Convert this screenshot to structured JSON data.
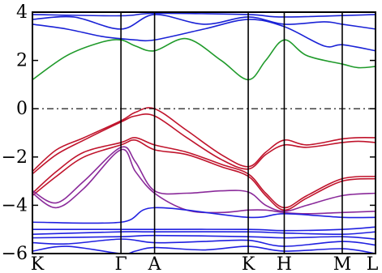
{
  "chart_data": {
    "type": "line",
    "title": "",
    "xlabel": "",
    "ylabel": "",
    "ylim": [
      -6,
      4
    ],
    "yticks": [
      4,
      2,
      0,
      -2,
      -4,
      -6
    ],
    "ytick_labels": [
      "4",
      "2",
      "0",
      "−2",
      "−4",
      "−6"
    ],
    "kpoints": [
      {
        "label": "K",
        "x": 0.0
      },
      {
        "label": "Γ",
        "x": 0.258
      },
      {
        "label": "A",
        "x": 0.356
      },
      {
        "label": "K",
        "x": 0.629
      },
      {
        "label": "H",
        "x": 0.734
      },
      {
        "label": "M",
        "x": 0.903
      },
      {
        "label": "L",
        "x": 1.0
      }
    ],
    "fermi_level": 0,
    "grid": false,
    "colors": {
      "conduction": "#1a22d6",
      "conduction_green": "#1f9a2a",
      "valence_red": "#c0142c",
      "valence_purple": "#8a2a9a",
      "deep_blue": "#2020e0",
      "fermi_line": "#000000"
    },
    "series": [
      {
        "group": "conduction",
        "x": [
          0,
          0.1,
          0.2,
          0.258,
          0.3,
          0.356,
          0.45,
          0.55,
          0.629,
          0.68,
          0.734,
          0.8,
          0.903,
          0.95,
          1.0
        ],
        "y": [
          1.2,
          2.2,
          2.75,
          2.85,
          2.6,
          2.4,
          2.9,
          2.0,
          1.2,
          2.0,
          2.85,
          2.2,
          1.85,
          1.7,
          1.75
        ]
      },
      {
        "group": "conduction",
        "x": [
          0,
          0.1,
          0.2,
          0.258,
          0.3,
          0.356,
          0.5,
          0.629,
          0.734,
          0.85,
          0.903,
          1.0
        ],
        "y": [
          3.5,
          3.3,
          3.0,
          2.9,
          2.85,
          2.85,
          3.3,
          3.7,
          3.4,
          2.6,
          2.65,
          2.4
        ]
      },
      {
        "group": "conduction",
        "x": [
          0,
          0.12,
          0.258,
          0.356,
          0.5,
          0.629,
          0.734,
          0.85,
          0.903,
          1.0
        ],
        "y": [
          3.7,
          3.8,
          3.3,
          3.9,
          3.5,
          3.8,
          3.5,
          3.6,
          3.5,
          3.3
        ]
      },
      {
        "group": "conduction",
        "x": [
          0,
          0.258,
          0.356,
          0.629,
          0.734,
          1.0
        ],
        "y": [
          3.9,
          3.85,
          3.95,
          3.9,
          3.8,
          3.9
        ]
      },
      {
        "group": "valence_top",
        "x": [
          0,
          0.07,
          0.15,
          0.258,
          0.3,
          0.356,
          0.45,
          0.55,
          0.629,
          0.68,
          0.734,
          0.8,
          0.903,
          0.95,
          1.0
        ],
        "y": [
          -2.6,
          -1.7,
          -1.2,
          -0.5,
          -0.15,
          0.0,
          -0.9,
          -1.9,
          -2.4,
          -1.8,
          -1.3,
          -1.5,
          -1.25,
          -1.2,
          -1.2
        ]
      },
      {
        "group": "valence_top",
        "x": [
          0,
          0.07,
          0.15,
          0.258,
          0.3,
          0.356,
          0.45,
          0.55,
          0.629,
          0.68,
          0.734,
          0.8,
          0.903,
          0.95,
          1.0
        ],
        "y": [
          -2.7,
          -1.9,
          -1.3,
          -0.55,
          -0.3,
          -0.3,
          -1.2,
          -2.1,
          -2.5,
          -1.9,
          -1.5,
          -1.6,
          -1.4,
          -1.35,
          -1.4
        ]
      },
      {
        "group": "valence_mid",
        "x": [
          0,
          0.07,
          0.15,
          0.258,
          0.3,
          0.356,
          0.45,
          0.55,
          0.629,
          0.68,
          0.734,
          0.8,
          0.903,
          1.0
        ],
        "y": [
          -3.5,
          -2.6,
          -1.8,
          -1.4,
          -1.2,
          -1.5,
          -1.8,
          -2.3,
          -2.7,
          -3.5,
          -4.1,
          -3.6,
          -2.9,
          -2.8
        ]
      },
      {
        "group": "valence_mid",
        "x": [
          0,
          0.07,
          0.15,
          0.258,
          0.3,
          0.356,
          0.45,
          0.55,
          0.629,
          0.68,
          0.734,
          0.8,
          0.903,
          1.0
        ],
        "y": [
          -3.6,
          -2.8,
          -2.0,
          -1.5,
          -1.3,
          -1.7,
          -1.9,
          -2.4,
          -2.8,
          -3.6,
          -4.2,
          -3.7,
          -3.0,
          -2.9
        ]
      },
      {
        "group": "valence_low",
        "x": [
          0,
          0.07,
          0.15,
          0.258,
          0.3,
          0.356,
          0.45,
          0.55,
          0.629,
          0.68,
          0.734,
          0.8,
          0.903,
          1.0
        ],
        "y": [
          -3.4,
          -3.9,
          -3.0,
          -1.6,
          -2.2,
          -3.4,
          -3.5,
          -3.4,
          -3.45,
          -4.0,
          -4.25,
          -4.0,
          -3.6,
          -3.5
        ]
      },
      {
        "group": "valence_low",
        "x": [
          0,
          0.07,
          0.15,
          0.258,
          0.3,
          0.356,
          0.45,
          0.55,
          0.629,
          0.68,
          0.734,
          0.8,
          0.903,
          1.0
        ],
        "y": [
          -3.5,
          -4.1,
          -3.3,
          -1.7,
          -2.6,
          -3.5,
          -4.2,
          -4.3,
          -4.2,
          -4.2,
          -4.3,
          -4.35,
          -4.3,
          -4.25
        ]
      },
      {
        "group": "deep",
        "x": [
          0,
          0.258,
          0.356,
          0.629,
          0.734,
          0.903,
          1.0
        ],
        "y": [
          -4.7,
          -4.7,
          -4.1,
          -4.5,
          -4.35,
          -4.5,
          -4.5
        ]
      },
      {
        "group": "deep",
        "x": [
          0,
          0.258,
          0.356,
          0.629,
          0.734,
          0.903,
          1.0
        ],
        "y": [
          -5.0,
          -5.0,
          -5.0,
          -5.0,
          -5.05,
          -5.0,
          -4.9
        ]
      },
      {
        "group": "deep",
        "x": [
          0,
          0.258,
          0.356,
          0.629,
          0.734,
          0.903,
          1.0
        ],
        "y": [
          -5.2,
          -5.1,
          -5.1,
          -5.1,
          -5.15,
          -5.2,
          -5.1
        ]
      },
      {
        "group": "deep",
        "x": [
          0,
          0.258,
          0.356,
          0.629,
          0.734,
          0.903,
          1.0
        ],
        "y": [
          -5.35,
          -5.3,
          -5.25,
          -5.3,
          -5.35,
          -5.3,
          -5.4
        ]
      },
      {
        "group": "deep",
        "x": [
          0,
          0.1,
          0.258,
          0.356,
          0.5,
          0.629,
          0.734,
          0.903,
          1.0
        ],
        "y": [
          -5.55,
          -5.6,
          -5.4,
          -5.55,
          -5.5,
          -5.45,
          -5.7,
          -5.5,
          -5.65
        ]
      },
      {
        "group": "deep",
        "x": [
          0,
          0.1,
          0.258,
          0.3,
          0.356,
          0.5,
          0.629,
          0.734,
          0.903,
          1.0
        ],
        "y": [
          -5.9,
          -5.7,
          -6.0,
          -5.9,
          -5.75,
          -5.85,
          -5.7,
          -5.9,
          -5.8,
          -6.0
        ]
      }
    ]
  }
}
